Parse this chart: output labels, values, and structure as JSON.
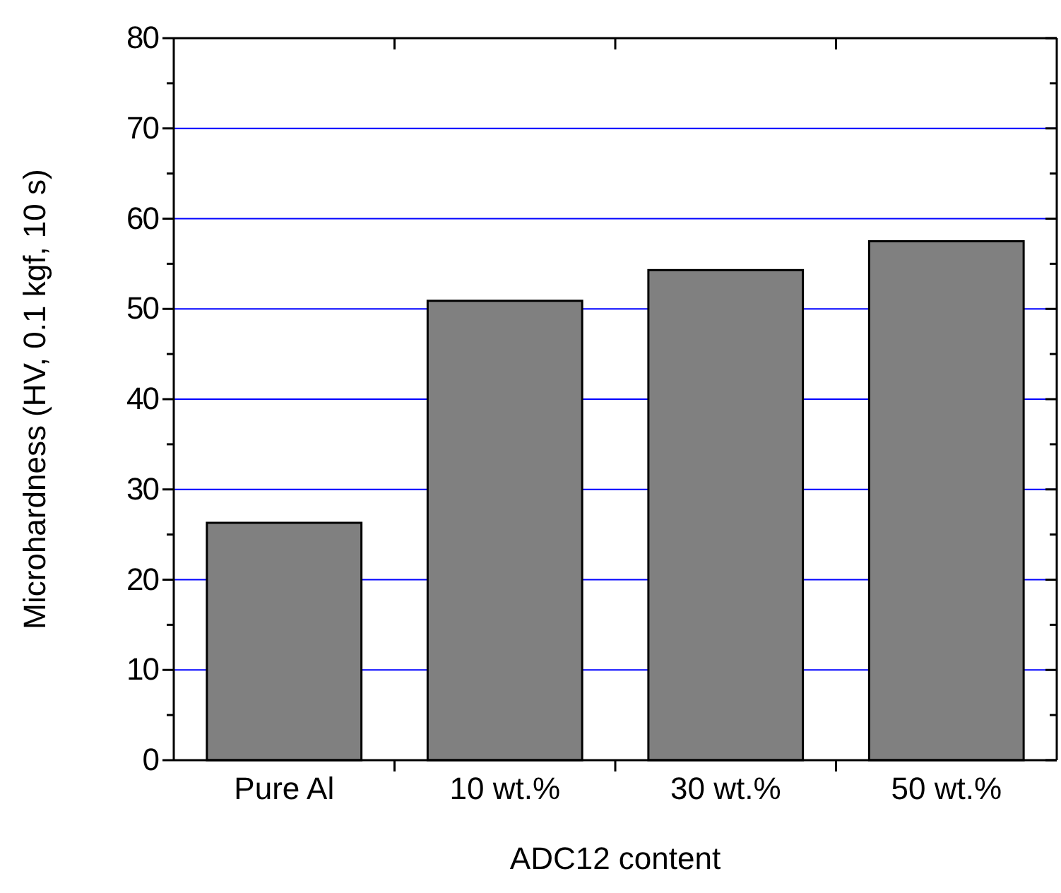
{
  "chart_data": {
    "type": "bar",
    "xlabel": "ADC12 content",
    "ylabel": "Microhardness (HV, 0.1 kgf, 10 s)",
    "categories": [
      "Pure Al",
      "10 wt.%",
      "30 wt.%",
      "50 wt.%"
    ],
    "values": [
      26.3,
      50.9,
      54.3,
      57.5
    ],
    "color": "#808080",
    "ylim": [
      0,
      80
    ],
    "yticks": [
      0,
      10,
      20,
      30,
      40,
      50,
      60,
      70,
      80
    ],
    "grid": "y"
  }
}
